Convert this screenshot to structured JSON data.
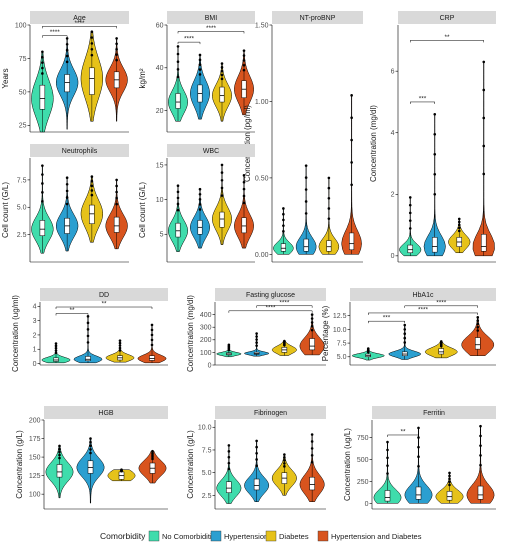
{
  "chart_data": {
    "type": "violin",
    "groups": [
      "No Comorbidities",
      "Hypertension",
      "Diabetes",
      "Hypertension and Diabetes"
    ],
    "colors": [
      "#3fdcac",
      "#2b9fd0",
      "#e6c21a",
      "#d8541e"
    ],
    "legend": {
      "title": "Comorbidity",
      "placement": "bottom",
      "items": [
        "No Comorbidities",
        "Hypertension",
        "Diabetes",
        "Hypertension and Diabetes"
      ]
    },
    "panels": [
      {
        "title": "Age",
        "ylabel": "Years",
        "yticks": [
          25,
          50,
          75,
          100
        ],
        "ylim": [
          20,
          100
        ],
        "medians": [
          45,
          57,
          60,
          59
        ],
        "q1": [
          37,
          50,
          48,
          53
        ],
        "q3": [
          55,
          63,
          68,
          65
        ],
        "mins": [
          20,
          22,
          28,
          28
        ],
        "maxs": [
          80,
          90,
          95,
          90
        ],
        "sig": [
          {
            "from": 0,
            "to": 1,
            "label": "****",
            "y": 92
          },
          {
            "from": 0,
            "to": 3,
            "label": "****",
            "y": 99
          }
        ]
      },
      {
        "title": "BMI",
        "ylabel": "kg/m²",
        "yticks": [
          20,
          40,
          60
        ],
        "ylim": [
          10,
          60
        ],
        "medians": [
          24,
          28,
          27,
          30
        ],
        "q1": [
          21,
          24,
          24,
          26
        ],
        "q3": [
          28,
          32,
          31,
          34
        ],
        "mins": [
          15,
          16,
          15,
          18
        ],
        "maxs": [
          50,
          46,
          42,
          48
        ],
        "sig": [
          {
            "from": 0,
            "to": 1,
            "label": "****",
            "y": 52
          },
          {
            "from": 0,
            "to": 3,
            "label": "****",
            "y": 57
          }
        ]
      },
      {
        "title": "NT-proBNP",
        "ylabel": "Concentration (pg/ml)",
        "yticks": [
          0.0,
          0.5,
          1.0,
          1.5
        ],
        "yticklabels": [
          "0.00",
          "0.50",
          "1.00",
          "1.50"
        ],
        "ylim": [
          -0.05,
          1.5
        ],
        "medians": [
          0.04,
          0.05,
          0.05,
          0.07
        ],
        "q1": [
          0.02,
          0.02,
          0.02,
          0.03
        ],
        "q3": [
          0.07,
          0.1,
          0.09,
          0.14
        ],
        "mins": [
          0.0,
          0.0,
          0.0,
          0.0
        ],
        "maxs": [
          0.3,
          0.58,
          0.5,
          1.04
        ],
        "sig": []
      },
      {
        "title": "CRP",
        "ylabel": "Concentration (mg/dl)",
        "yticks": [
          0,
          2,
          4,
          6
        ],
        "ylim": [
          -0.2,
          7.5
        ],
        "medians": [
          0.2,
          0.3,
          0.45,
          0.3
        ],
        "q1": [
          0.1,
          0.12,
          0.3,
          0.15
        ],
        "q3": [
          0.35,
          0.6,
          0.6,
          0.7
        ],
        "mins": [
          0.0,
          0.0,
          0.1,
          0.0
        ],
        "maxs": [
          1.9,
          4.6,
          1.2,
          6.3
        ],
        "sig": [
          {
            "from": 0,
            "to": 1,
            "label": "***",
            "y": 5.0
          },
          {
            "from": 0,
            "to": 3,
            "label": "**",
            "y": 7.0
          }
        ]
      },
      {
        "title": "Neutrophils",
        "ylabel": "Cell count (G/L)",
        "yticks": [
          2.5,
          5.0,
          7.5
        ],
        "yticklabels": [
          "2.5",
          "5.0",
          "7.5"
        ],
        "ylim": [
          0,
          9.5
        ],
        "medians": [
          3.0,
          3.3,
          4.4,
          3.3
        ],
        "q1": [
          2.4,
          2.6,
          3.5,
          2.7
        ],
        "q3": [
          3.8,
          4.0,
          5.2,
          4.1
        ],
        "mins": [
          0.8,
          1.0,
          1.8,
          1.2
        ],
        "maxs": [
          8.8,
          7.7,
          7.8,
          7.5
        ],
        "sig": []
      },
      {
        "title": "WBC",
        "ylabel": "Cell count (G/L)",
        "yticks": [
          5,
          10,
          15
        ],
        "ylim": [
          1,
          16
        ],
        "medians": [
          5.5,
          6.0,
          7.2,
          6.2
        ],
        "q1": [
          4.6,
          5.0,
          6.0,
          5.2
        ],
        "q3": [
          6.6,
          7.0,
          8.2,
          7.4
        ],
        "mins": [
          2.5,
          3.0,
          3.5,
          3.0
        ],
        "maxs": [
          12,
          11.5,
          15.0,
          13.5
        ],
        "sig": []
      },
      {
        "title": "DD",
        "ylabel": "Concentration (ug/ml)",
        "yticks": [
          0,
          1,
          2,
          3,
          4
        ],
        "ylim": [
          -0.1,
          4.3
        ],
        "medians": [
          0.25,
          0.3,
          0.4,
          0.35
        ],
        "q1": [
          0.15,
          0.2,
          0.25,
          0.22
        ],
        "q3": [
          0.4,
          0.5,
          0.55,
          0.55
        ],
        "mins": [
          0.05,
          0.05,
          0.1,
          0.05
        ],
        "maxs": [
          1.4,
          3.3,
          1.6,
          2.7
        ],
        "sig": [
          {
            "from": 0,
            "to": 1,
            "label": "**",
            "y": 3.5
          },
          {
            "from": 0,
            "to": 3,
            "label": "**",
            "y": 3.95
          }
        ]
      },
      {
        "title": "Fasting glucose",
        "ylabel": "Concentration (mg/dl)",
        "yticks": [
          0,
          100,
          200,
          300,
          400
        ],
        "ylim": [
          0,
          500
        ],
        "medians": [
          88,
          92,
          120,
          150
        ],
        "q1": [
          80,
          85,
          100,
          120
        ],
        "q3": [
          97,
          102,
          140,
          210
        ],
        "mins": [
          65,
          70,
          75,
          80
        ],
        "maxs": [
          160,
          250,
          190,
          400
        ],
        "sig": [
          {
            "from": 0,
            "to": 3,
            "label": "****",
            "y": 430
          },
          {
            "from": 1,
            "to": 3,
            "label": "****",
            "y": 470
          }
        ]
      },
      {
        "title": "HbA1c",
        "ylabel": "Percentage (%)",
        "yticks": [
          5.0,
          7.5,
          10.0,
          12.5
        ],
        "yticklabels": [
          "5.0",
          "7.5",
          "10.0",
          "12.5"
        ],
        "ylim": [
          3.5,
          15
        ],
        "medians": [
          5.2,
          5.5,
          5.9,
          7.2
        ],
        "q1": [
          5.0,
          5.2,
          5.5,
          6.4
        ],
        "q3": [
          5.5,
          5.9,
          6.5,
          8.5
        ],
        "mins": [
          4.4,
          4.5,
          4.8,
          5.2
        ],
        "maxs": [
          6.5,
          10.8,
          7.8,
          12.2
        ],
        "sig": [
          {
            "from": 0,
            "to": 1,
            "label": "***",
            "y": 11.5
          },
          {
            "from": 0,
            "to": 3,
            "label": "****",
            "y": 13.0
          },
          {
            "from": 1,
            "to": 3,
            "label": "****",
            "y": 14.3
          }
        ]
      },
      {
        "title": "HGB",
        "ylabel": "Concentration (g/L)",
        "yticks": [
          100,
          125,
          150,
          175,
          200
        ],
        "ylim": [
          80,
          200
        ],
        "medians": [
          130,
          136,
          125,
          135
        ],
        "q1": [
          123,
          128,
          120,
          128
        ],
        "q3": [
          140,
          145,
          130,
          142
        ],
        "mins": [
          95,
          88,
          118,
          115
        ],
        "maxs": [
          165,
          175,
          133,
          158
        ],
        "sig": []
      },
      {
        "title": "Fibrinogen",
        "ylabel": "Concentration (g/L)",
        "yticks": [
          2.5,
          5.0,
          7.5,
          10.0
        ],
        "yticklabels": [
          "2.5",
          "5.0",
          "7.5",
          "10.0"
        ],
        "ylim": [
          1,
          10.8
        ],
        "medians": [
          3.3,
          3.6,
          4.4,
          3.7
        ],
        "q1": [
          2.8,
          3.1,
          3.8,
          3.1
        ],
        "q3": [
          4.0,
          4.3,
          5.0,
          4.5
        ],
        "mins": [
          1.6,
          1.8,
          2.5,
          1.8
        ],
        "maxs": [
          8.0,
          8.5,
          7.0,
          9.2
        ],
        "sig": []
      },
      {
        "title": "Ferritin",
        "ylabel": "Concentration (ug/L)",
        "yticks": [
          0,
          250,
          500,
          750
        ],
        "ylim": [
          -60,
          950
        ],
        "medians": [
          70,
          100,
          80,
          100
        ],
        "q1": [
          30,
          50,
          40,
          50
        ],
        "q3": [
          150,
          190,
          140,
          200
        ],
        "mins": [
          5,
          5,
          5,
          5
        ],
        "maxs": [
          700,
          860,
          350,
          880
        ],
        "sig": [
          {
            "from": 0,
            "to": 1,
            "label": "**",
            "y": 780
          }
        ]
      }
    ]
  }
}
